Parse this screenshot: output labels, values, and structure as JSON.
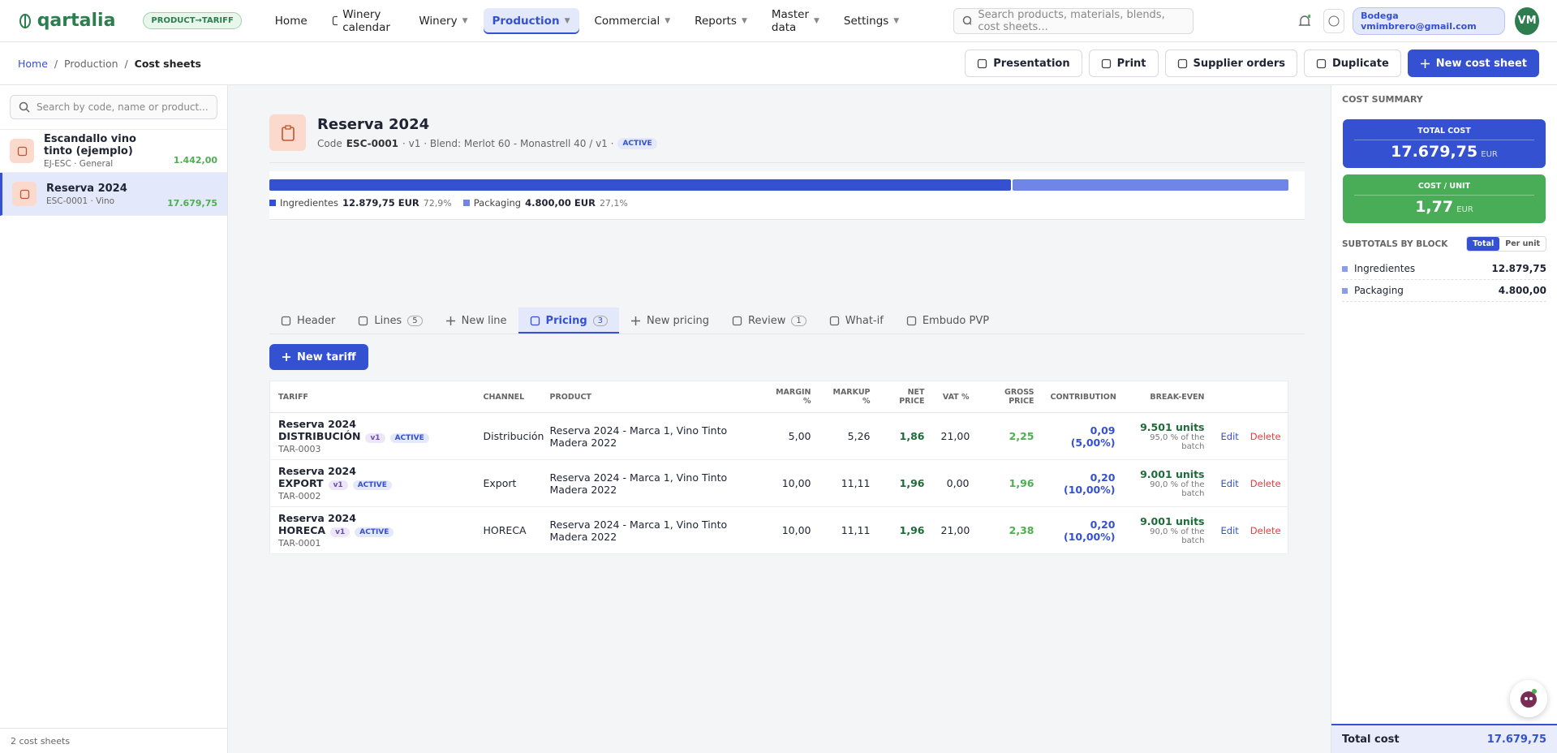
{
  "nav": {
    "brand": "qartalia",
    "badge": "PRODUCT→TARIFF",
    "items": [
      "Home",
      "Winery calendar",
      "Winery",
      "Production",
      "Commercial",
      "Reports",
      "Master data",
      "Settings"
    ],
    "search_placeholder": "Search products, materials, blends, cost sheets...",
    "user": "Bodega vmimbrero@gmail.com",
    "avatar": "VM"
  },
  "breadcrumb": [
    "Home",
    "Production",
    "Cost sheets"
  ],
  "actions": [
    "Presentation",
    "Print",
    "Supplier orders",
    "Duplicate",
    "New cost sheet"
  ],
  "sidebar": {
    "search_placeholder": "Search by code, name or product...",
    "items": [
      {
        "name": "Escandallo vino tinto (ejemplo)",
        "meta": "EJ-ESC · General",
        "total": "1.442,00"
      },
      {
        "name": "Reserva 2024",
        "meta": "ESC-0001 · Vino",
        "total": "17.679,75"
      }
    ],
    "footer": "2 cost sheets"
  },
  "sheet": {
    "title": "Reserva 2024",
    "code_label": "Code",
    "code": "ESC-0001",
    "details": "· v1 · Blend: Merlot 60 - Monastrell 40 / v1 ·",
    "status": "ACTIVE"
  },
  "composition": [
    {
      "name": "Ingredientes",
      "amount": "12.879,75 EUR",
      "share": {
        "value": 72.9,
        "label": "72,9%"
      }
    },
    {
      "name": "Packaging",
      "amount": "4.800,00 EUR",
      "share": {
        "value": 27.1,
        "label": "27,1%"
      }
    }
  ],
  "tabs": [
    {
      "label": "Header"
    },
    {
      "label": "Lines",
      "count": "5"
    },
    {
      "label": "New line"
    },
    {
      "label": "Pricing",
      "count": "3"
    },
    {
      "label": "New pricing"
    },
    {
      "label": "Review",
      "count": "1"
    },
    {
      "label": "What-if"
    },
    {
      "label": "Embudo PVP"
    }
  ],
  "new_tariff": "New tariff",
  "table": {
    "columns": [
      "TARIFF",
      "CHANNEL",
      "PRODUCT",
      "MARGIN %",
      "MARKUP %",
      "NET PRICE",
      "VAT %",
      "GROSS PRICE",
      "CONTRIBUTION",
      "BREAK-EVEN"
    ],
    "row_actions": [
      "Edit",
      "Delete"
    ],
    "rows": [
      {
        "name": "Reserva 2024 DISTRIBUCIÓN",
        "version": "v1",
        "status": "ACTIVE",
        "code": "TAR-0003",
        "channel": "Distribución",
        "product": "Reserva 2024 - Marca 1, Vino Tinto Madera 2022",
        "margin": "5,00",
        "markup": "5,26",
        "net": "1,86",
        "vat": "21,00",
        "gross": "2,25",
        "contribution": "0,09 (5,00%)",
        "breakeven": "9.501 units",
        "breakeven_note": "95,0 % of the batch"
      },
      {
        "name": "Reserva 2024 EXPORT",
        "version": "v1",
        "status": "ACTIVE",
        "code": "TAR-0002",
        "channel": "Export",
        "product": "Reserva 2024 - Marca 1, Vino Tinto Madera 2022",
        "margin": "10,00",
        "markup": "11,11",
        "net": "1,96",
        "vat": "0,00",
        "gross": "1,96",
        "contribution": "0,20 (10,00%)",
        "breakeven": "9.001 units",
        "breakeven_note": "90,0 % of the batch"
      },
      {
        "name": "Reserva 2024 HORECA",
        "version": "v1",
        "status": "ACTIVE",
        "code": "TAR-0001",
        "channel": "HORECA",
        "product": "Reserva 2024 - Marca 1, Vino Tinto Madera 2022",
        "margin": "10,00",
        "markup": "11,11",
        "net": "1,96",
        "vat": "21,00",
        "gross": "2,38",
        "contribution": "0,20 (10,00%)",
        "breakeven": "9.001 units",
        "breakeven_note": "90,0 % of the batch"
      }
    ]
  },
  "summary": {
    "heading": "COST SUMMARY",
    "total_label": "TOTAL COST",
    "total": "17.679,75",
    "total_unit": "EUR",
    "unit_label": "COST / UNIT",
    "unit_cost": "1,77",
    "unit_unit": "EUR",
    "subtotals_heading": "SUBTOTALS BY BLOCK",
    "toggle": [
      "Total",
      "Per unit"
    ],
    "blocks": [
      {
        "name": "Ingredientes",
        "value": "12.879,75"
      },
      {
        "name": "Packaging",
        "value": "4.800,00"
      }
    ],
    "footer_label": "Total cost",
    "footer_value": "17.679,75"
  }
}
